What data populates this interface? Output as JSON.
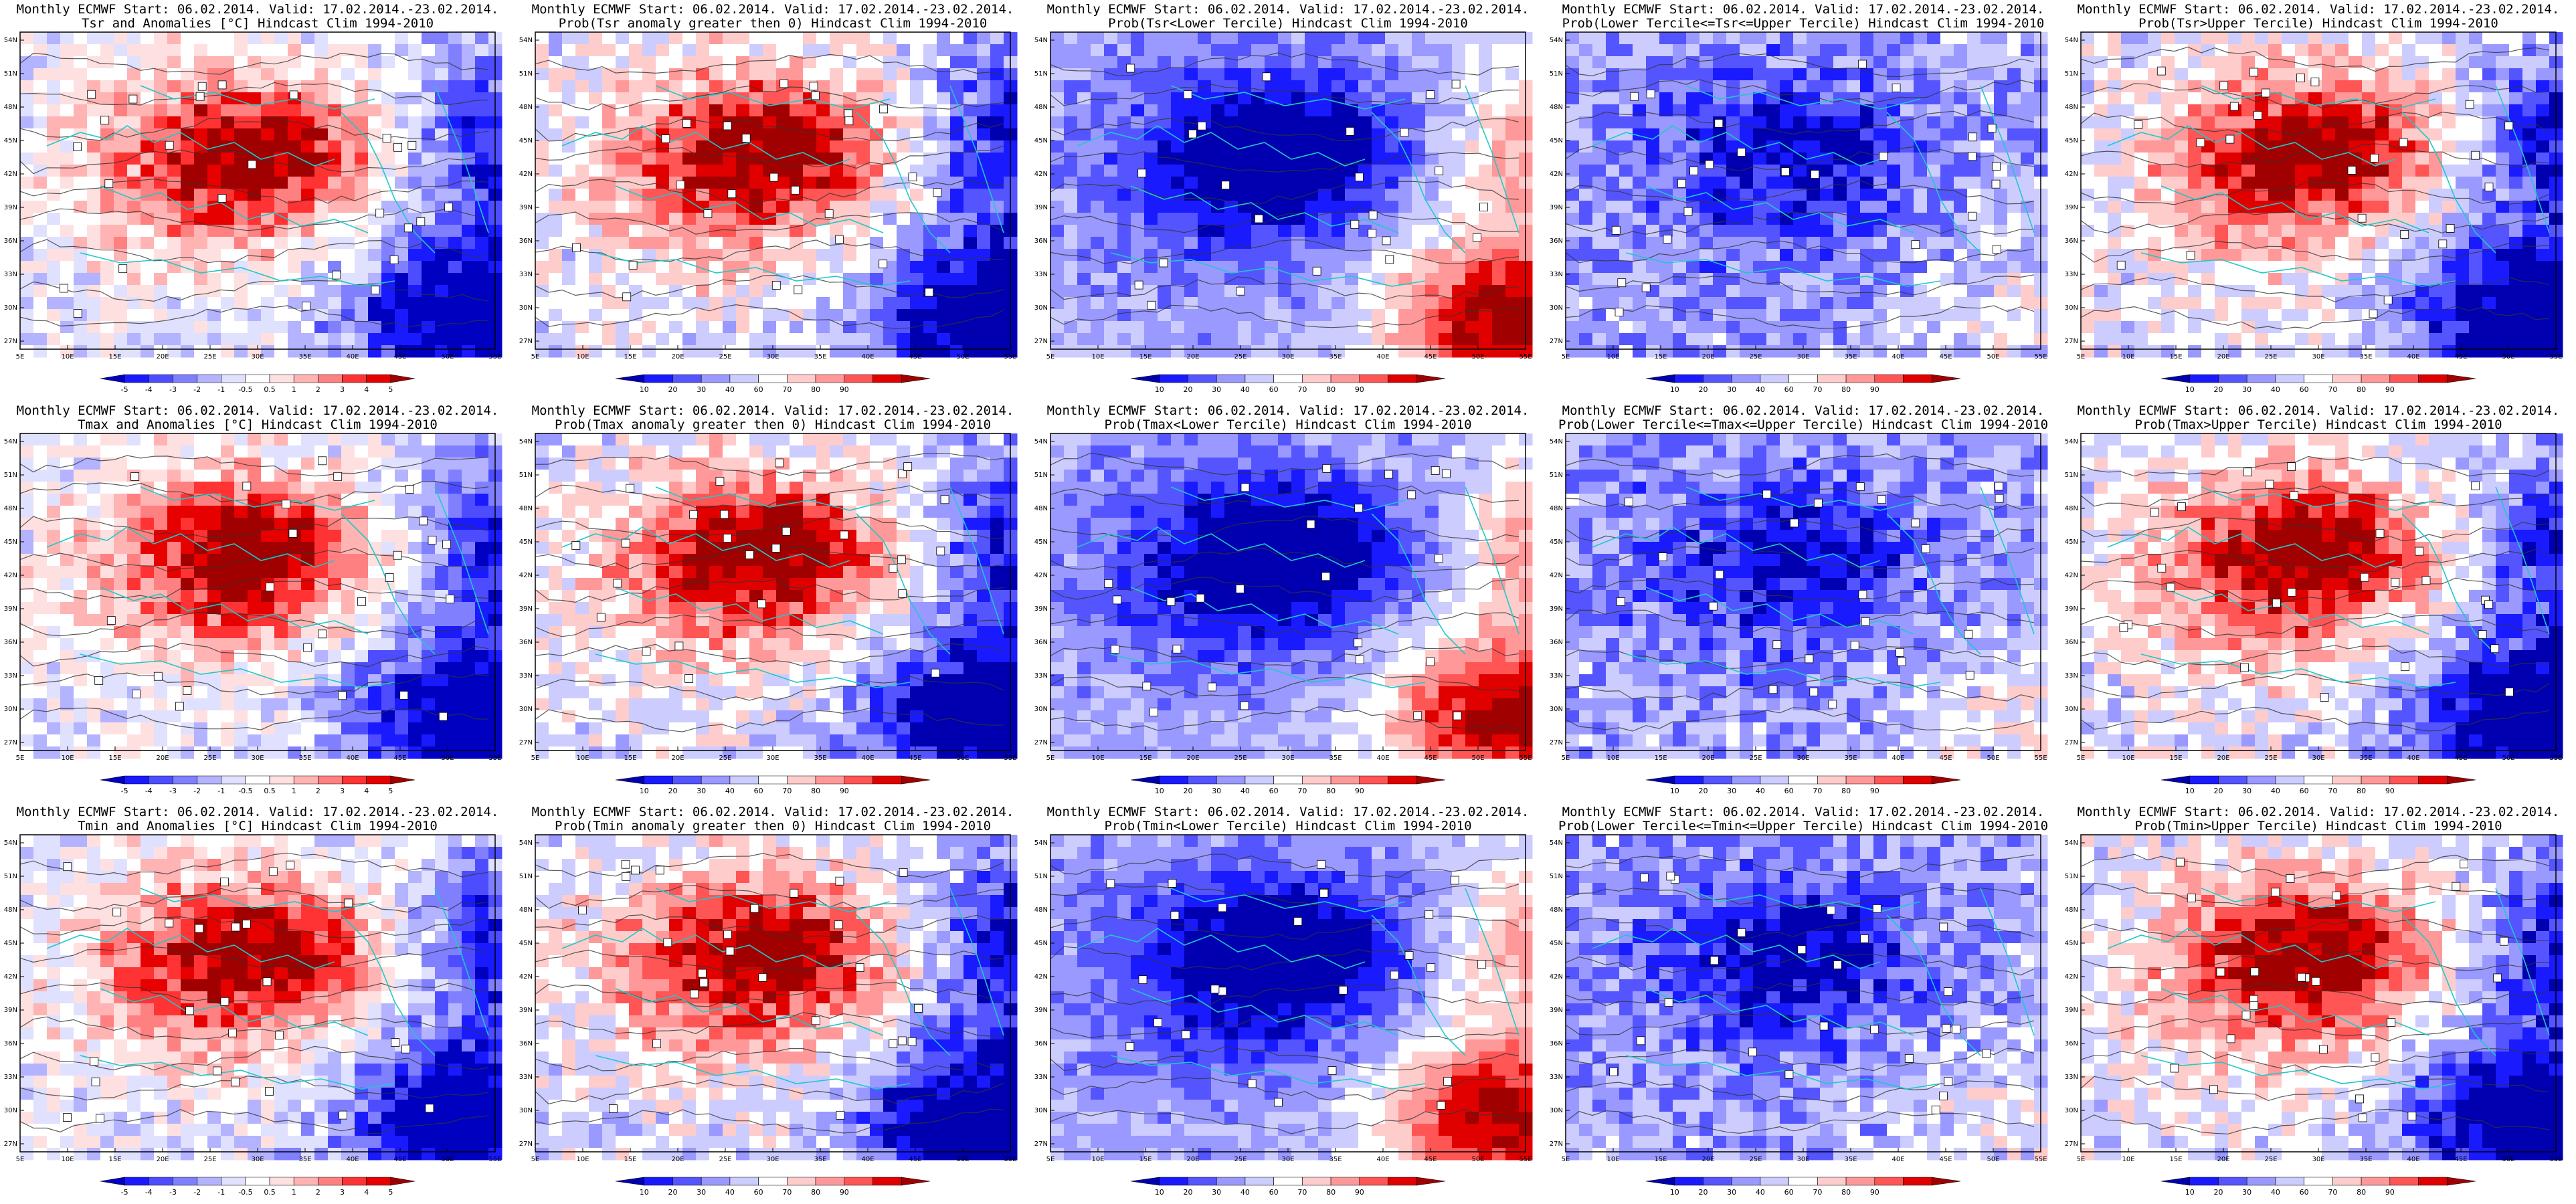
{
  "panels": [
    {
      "title_line1": "Monthly ECMWF Start: 06.02.2014. Valid: 17.02.2014.-23.02.2014.",
      "title_line2": "Tsr and Anomalies [°C] Hindcast Clim 1994-2010",
      "type": "anom",
      "seed": 11
    },
    {
      "title_line1": "Monthly ECMWF Start: 06.02.2014. Valid: 17.02.2014.-23.02.2014.",
      "title_line2": "Prob(Tsr anomaly greater then 0) Hindcast Clim 1994-2010",
      "type": "pos",
      "seed": 12
    },
    {
      "title_line1": "Monthly ECMWF Start: 06.02.2014. Valid: 17.02.2014.-23.02.2014.",
      "title_line2": "Prob(Tsr<Lower Tercile) Hindcast Clim 1994-2010",
      "type": "lower",
      "seed": 13
    },
    {
      "title_line1": "Monthly ECMWF Start: 06.02.2014. Valid: 17.02.2014.-23.02.2014.",
      "title_line2": "Prob(Lower Tercile<=Tsr<=Upper Tercile) Hindcast Clim 1994-2010",
      "type": "mid",
      "seed": 14
    },
    {
      "title_line1": "Monthly ECMWF Start: 06.02.2014. Valid: 17.02.2014.-23.02.2014.",
      "title_line2": "Prob(Tsr>Upper Tercile) Hindcast Clim 1994-2010",
      "type": "upper",
      "seed": 15
    },
    {
      "title_line1": "Monthly ECMWF Start: 06.02.2014. Valid: 17.02.2014.-23.02.2014.",
      "title_line2": "Tmax and Anomalies [°C] Hindcast Clim 1994-2010",
      "type": "anom",
      "seed": 21
    },
    {
      "title_line1": "Monthly ECMWF Start: 06.02.2014. Valid: 17.02.2014.-23.02.2014.",
      "title_line2": "Prob(Tmax anomaly greater then 0) Hindcast Clim 1994-2010",
      "type": "pos",
      "seed": 22
    },
    {
      "title_line1": "Monthly ECMWF Start: 06.02.2014. Valid: 17.02.2014.-23.02.2014.",
      "title_line2": "Prob(Tmax<Lower Tercile) Hindcast Clim 1994-2010",
      "type": "lower",
      "seed": 23
    },
    {
      "title_line1": "Monthly ECMWF Start: 06.02.2014. Valid: 17.02.2014.-23.02.2014.",
      "title_line2": "Prob(Lower Tercile<=Tmax<=Upper Tercile) Hindcast Clim 1994-2010",
      "type": "mid",
      "seed": 24
    },
    {
      "title_line1": "Monthly ECMWF Start: 06.02.2014. Valid: 17.02.2014.-23.02.2014.",
      "title_line2": "Prob(Tmax>Upper Tercile) Hindcast Clim 1994-2010",
      "type": "upper",
      "seed": 25
    },
    {
      "title_line1": "Monthly ECMWF Start: 06.02.2014. Valid: 17.02.2014.-23.02.2014.",
      "title_line2": "Tmin and Anomalies [°C] Hindcast Clim 1994-2010",
      "type": "anom",
      "seed": 31
    },
    {
      "title_line1": "Monthly ECMWF Start: 06.02.2014. Valid: 17.02.2014.-23.02.2014.",
      "title_line2": "Prob(Tmin anomaly greater then 0) Hindcast Clim 1994-2010",
      "type": "pos",
      "seed": 32
    },
    {
      "title_line1": "Monthly ECMWF Start: 06.02.2014. Valid: 17.02.2014.-23.02.2014.",
      "title_line2": "Prob(Tmin<Lower Tercile) Hindcast Clim 1994-2010",
      "type": "lower",
      "seed": 33
    },
    {
      "title_line1": "Monthly ECMWF Start: 06.02.2014. Valid: 17.02.2014.-23.02.2014.",
      "title_line2": "Prob(Lower Tercile<=Tmin<=Upper Tercile) Hindcast Clim 1994-2010",
      "type": "mid",
      "seed": 34
    },
    {
      "title_line1": "Monthly ECMWF Start: 06.02.2014. Valid: 17.02.2014.-23.02.2014.",
      "title_line2": "Prob(Tmin>Upper Tercile) Hindcast Clim 1994-2010",
      "type": "upper",
      "seed": 35
    }
  ],
  "lat_labels": [
    "54N",
    "51N",
    "48N",
    "45N",
    "42N",
    "39N",
    "36N",
    "33N",
    "30N",
    "27N"
  ],
  "lon_labels": [
    "5E",
    "10E",
    "15E",
    "20E",
    "25E",
    "30E",
    "35E",
    "40E",
    "45E",
    "50E",
    "55E"
  ],
  "colorbars": {
    "anom": {
      "labels": [
        "-5",
        "-4",
        "-3",
        "-2",
        "-1",
        "-0.5",
        "0.5",
        "1",
        "2",
        "3",
        "4",
        "5"
      ],
      "colors": [
        "#0000c0",
        "#1a1aff",
        "#4d4dff",
        "#8080ff",
        "#b3b3ff",
        "#e0e0ff",
        "#ffffff",
        "#ffe0e0",
        "#ffb3b3",
        "#ff8080",
        "#ff3333",
        "#e60000",
        "#a00000"
      ]
    },
    "prob": {
      "labels": [
        "10",
        "20",
        "30",
        "40",
        "60",
        "70",
        "80",
        "90"
      ],
      "colors": [
        "#0000b0",
        "#1a1aff",
        "#5555ff",
        "#9999ff",
        "#ccccff",
        "#ffffff",
        "#ffcccc",
        "#ff9999",
        "#ff5555",
        "#e00000",
        "#a00000"
      ]
    }
  }
}
